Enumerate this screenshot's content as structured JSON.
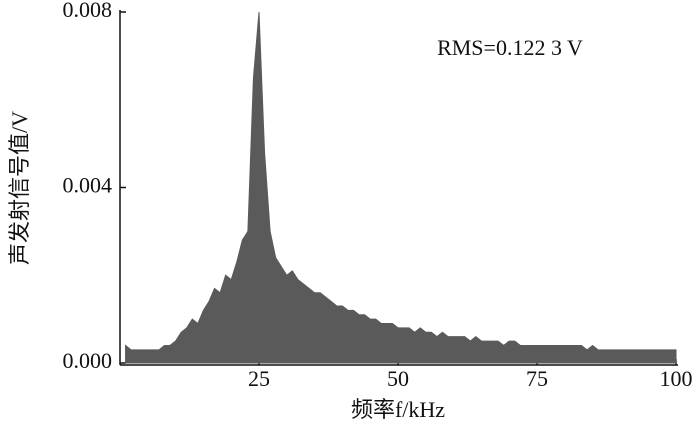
{
  "chart_data": {
    "type": "area",
    "annotation": "RMS=0.122 3 V",
    "x_label": "频率f/kHz",
    "y_label": "声发射信号值/V",
    "xlim": [
      0,
      100
    ],
    "xticks": [
      25,
      50,
      75,
      100
    ],
    "ylim": [
      0,
      0.008
    ],
    "yticks": [
      {
        "value": 0,
        "label": "0.000"
      },
      {
        "value": 0.004,
        "label": "0.004"
      },
      {
        "value": 0.008,
        "label": "0.008"
      }
    ],
    "x": [
      1,
      2,
      3,
      4,
      5,
      6,
      7,
      8,
      9,
      10,
      11,
      12,
      13,
      14,
      15,
      16,
      17,
      18,
      19,
      20,
      21,
      22,
      23,
      24,
      25,
      26,
      27,
      28,
      29,
      30,
      31,
      32,
      33,
      34,
      35,
      36,
      37,
      38,
      39,
      40,
      41,
      42,
      43,
      44,
      45,
      46,
      47,
      48,
      49,
      50,
      51,
      52,
      53,
      54,
      55,
      56,
      57,
      58,
      59,
      60,
      61,
      62,
      63,
      64,
      65,
      66,
      67,
      68,
      69,
      70,
      71,
      72,
      73,
      74,
      75,
      76,
      77,
      78,
      79,
      80,
      81,
      82,
      83,
      84,
      85,
      86,
      87,
      88,
      89,
      90,
      91,
      92,
      93,
      94,
      95,
      96,
      97,
      98,
      99,
      100
    ],
    "series": [
      {
        "color": "#5a5a5a",
        "values": [
          0.0004,
          0.0003,
          0.0003,
          0.0003,
          0.0003,
          0.0003,
          0.0003,
          0.0004,
          0.0004,
          0.0005,
          0.0007,
          0.0008,
          0.001,
          0.0009,
          0.0012,
          0.0014,
          0.0017,
          0.0016,
          0.002,
          0.0019,
          0.0023,
          0.0028,
          0.003,
          0.0065,
          0.008,
          0.0048,
          0.003,
          0.0024,
          0.0022,
          0.002,
          0.0021,
          0.0019,
          0.0018,
          0.0017,
          0.0016,
          0.0016,
          0.0015,
          0.0014,
          0.0013,
          0.0013,
          0.0012,
          0.0012,
          0.0011,
          0.0011,
          0.001,
          0.001,
          0.0009,
          0.0009,
          0.0009,
          0.0008,
          0.0008,
          0.0008,
          0.0007,
          0.0008,
          0.0007,
          0.0007,
          0.0006,
          0.0007,
          0.0006,
          0.0006,
          0.0006,
          0.0006,
          0.0005,
          0.0006,
          0.0005,
          0.0005,
          0.0005,
          0.0005,
          0.0004,
          0.0005,
          0.0005,
          0.0004,
          0.0004,
          0.0004,
          0.0004,
          0.0004,
          0.0004,
          0.0004,
          0.0004,
          0.0004,
          0.0004,
          0.0004,
          0.0004,
          0.0003,
          0.0004,
          0.0003,
          0.0003,
          0.0003,
          0.0003,
          0.0003,
          0.0003,
          0.0003,
          0.0003,
          0.0003,
          0.0003,
          0.0003,
          0.0003,
          0.0003,
          0.0003,
          0.0003
        ]
      }
    ]
  }
}
